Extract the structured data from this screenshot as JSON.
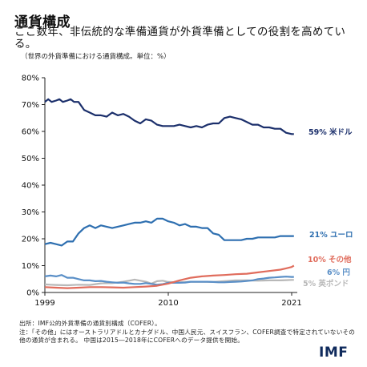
{
  "title": "通貨構成",
  "subtitle": "ここ数年、非伝統的な準備通貨が外貨準備としての役割を高めている。",
  "note": "（世界の外貨準備における通貨構成。単位：%）",
  "footer": {
    "source": "出所：IMF公的外貨準備の通貨別構成（COFER）。",
    "note": "注：「その他」にはオーストラリアドルとカナダドル、中国人民元、スイスフラン、COFER調査で特定されていないその他の通貨が含まれる。 中国は2015―2018年にCOFERへのデータ提供を開始。"
  },
  "logo": "IMF",
  "chart_data": {
    "type": "line",
    "xlim": [
      1999,
      2021.5
    ],
    "ylim": [
      0,
      80
    ],
    "y_ticks": [
      "0%",
      "10%",
      "20%",
      "30%",
      "40%",
      "50%",
      "60%",
      "70%",
      "80%"
    ],
    "x_ticks": [
      "1999",
      "2010",
      "2021"
    ],
    "grid": false,
    "series": [
      {
        "name": "59% 米ドル",
        "color": "#1b2f6b",
        "x": [
          1999,
          1999.3,
          1999.6,
          2000,
          2000.3,
          2000.6,
          2001,
          2001.3,
          2001.6,
          2002,
          2002.5,
          2003,
          2003.5,
          2004,
          2004.5,
          2005,
          2005.5,
          2006,
          2006.5,
          2007,
          2007.5,
          2008,
          2008.5,
          2009,
          2009.5,
          2010,
          2010.5,
          2011,
          2011.5,
          2012,
          2012.5,
          2013,
          2013.5,
          2014,
          2014.5,
          2015,
          2015.5,
          2016,
          2016.5,
          2017,
          2017.5,
          2018,
          2018.5,
          2019,
          2019.5,
          2020,
          2020.5,
          2021,
          2021.2
        ],
        "y": [
          71,
          72,
          71,
          71.5,
          72,
          71,
          71.5,
          72,
          71,
          71,
          68,
          67,
          66,
          66,
          65.5,
          67,
          66,
          66.5,
          65.5,
          64,
          63,
          64.5,
          64,
          62.5,
          62,
          62,
          62,
          62.5,
          62,
          61.5,
          62,
          61.5,
          62.5,
          63,
          63,
          65,
          65.5,
          65,
          64.5,
          63.5,
          62.5,
          62.5,
          61.5,
          61.5,
          61,
          61,
          59.5,
          59,
          59
        ]
      },
      {
        "name": "21% ユーロ",
        "color": "#2e6fb0",
        "x": [
          1999,
          1999.5,
          2000,
          2000.5,
          2001,
          2001.5,
          2002,
          2002.5,
          2003,
          2003.5,
          2004,
          2004.5,
          2005,
          2005.5,
          2006,
          2006.5,
          2007,
          2007.5,
          2008,
          2008.5,
          2009,
          2009.5,
          2010,
          2010.5,
          2011,
          2011.5,
          2012,
          2012.5,
          2013,
          2013.5,
          2014,
          2014.5,
          2015,
          2015.5,
          2016,
          2016.5,
          2017,
          2017.5,
          2018,
          2018.5,
          2019,
          2019.5,
          2020,
          2020.5,
          2021,
          2021.2
        ],
        "y": [
          18,
          18.5,
          18,
          17.5,
          19,
          19,
          22,
          24,
          25,
          24,
          25,
          24.5,
          24,
          24.5,
          25,
          25.5,
          26,
          26,
          26.5,
          26,
          27.5,
          27.5,
          26.5,
          26,
          25,
          25.5,
          24.5,
          24.5,
          24,
          24,
          22,
          21.5,
          19.5,
          19.5,
          19.5,
          19.5,
          20,
          20,
          20.5,
          20.5,
          20.5,
          20.5,
          21,
          21,
          21,
          21
        ]
      },
      {
        "name": "10% その他",
        "color": "#e06c5c",
        "x": [
          1999,
          2000,
          2001,
          2002,
          2003,
          2004,
          2005,
          2006,
          2007,
          2008,
          2009,
          2010,
          2011,
          2012,
          2013,
          2014,
          2015,
          2016,
          2017,
          2018,
          2019,
          2020,
          2020.5,
          2021,
          2021.2
        ],
        "y": [
          2,
          1.8,
          1.6,
          1.8,
          2,
          2,
          1.9,
          1.8,
          2,
          2.2,
          2.5,
          3.3,
          4.5,
          5.5,
          6,
          6.3,
          6.5,
          6.8,
          7,
          7.5,
          8,
          8.5,
          9,
          9.5,
          10
        ]
      },
      {
        "name": "6% 円",
        "color": "#5a8fc7",
        "x": [
          1999,
          1999.5,
          2000,
          2000.5,
          2001,
          2001.5,
          2002,
          2002.5,
          2003,
          2003.5,
          2004,
          2004.5,
          2005,
          2005.5,
          2006,
          2006.5,
          2007,
          2007.5,
          2008,
          2008.5,
          2009,
          2009.5,
          2010,
          2010.5,
          2011,
          2011.5,
          2012,
          2012.5,
          2013,
          2013.5,
          2014,
          2014.5,
          2015,
          2015.5,
          2016,
          2016.5,
          2017,
          2017.5,
          2018,
          2018.5,
          2019,
          2019.5,
          2020,
          2020.5,
          2021,
          2021.2
        ],
        "y": [
          6,
          6.3,
          6,
          6.5,
          5.5,
          5.5,
          5,
          4.5,
          4.5,
          4.2,
          4.3,
          4,
          3.8,
          3.6,
          3.7,
          3.4,
          3.2,
          3.2,
          3.5,
          3.2,
          2.9,
          3.1,
          3.6,
          3.6,
          3.6,
          3.7,
          4,
          4,
          4,
          4,
          3.9,
          3.8,
          3.8,
          3.9,
          4,
          4.1,
          4.3,
          4.5,
          5,
          5.2,
          5.5,
          5.6,
          5.8,
          5.9,
          5.8,
          5.8
        ]
      },
      {
        "name": "5% 英ポンド",
        "color": "#b8b8b8",
        "x": [
          1999,
          1999.5,
          2000,
          2001,
          2002,
          2003,
          2004,
          2005,
          2006,
          2006.5,
          2007,
          2008,
          2008.5,
          2009,
          2009.5,
          2010,
          2011,
          2012,
          2013,
          2014,
          2015,
          2016,
          2017,
          2018,
          2019,
          2020,
          2020.5,
          2021,
          2021.2
        ],
        "y": [
          3,
          2.9,
          2.8,
          2.7,
          2.9,
          2.8,
          3.4,
          3.5,
          4,
          4.4,
          4.8,
          4,
          3.3,
          4.2,
          4.4,
          3.9,
          3.8,
          4,
          4,
          3.9,
          4.2,
          4.5,
          4.5,
          4.4,
          4.5,
          4.5,
          4.6,
          4.7,
          4.7
        ]
      }
    ]
  }
}
